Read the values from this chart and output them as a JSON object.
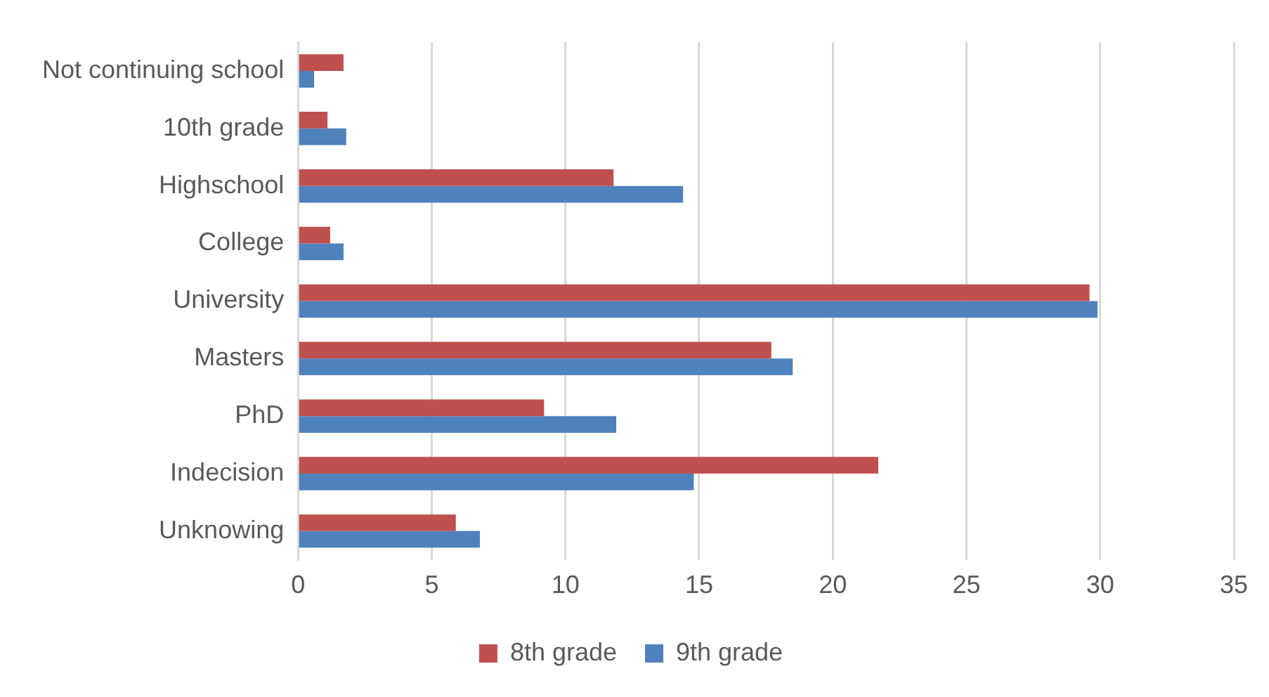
{
  "chart_data": {
    "type": "bar",
    "orientation": "horizontal",
    "categories": [
      "Not continuing school",
      "10th grade",
      "Highschool",
      "College",
      "University",
      "Masters",
      "PhD",
      "Indecision",
      "Unknowing"
    ],
    "series": [
      {
        "name": "8th grade",
        "color": "#c0504d",
        "values": [
          1.7,
          1.1,
          11.8,
          1.2,
          29.6,
          17.7,
          9.2,
          21.7,
          5.9
        ]
      },
      {
        "name": "9th grade",
        "color": "#4f81bd",
        "values": [
          0.6,
          1.8,
          14.4,
          1.7,
          29.9,
          18.5,
          11.9,
          14.8,
          6.8
        ]
      }
    ],
    "xlim": [
      0,
      35
    ],
    "xticks": [
      0,
      5,
      10,
      15,
      20,
      25,
      30,
      35
    ],
    "grid": "x",
    "legend": "bottom"
  }
}
